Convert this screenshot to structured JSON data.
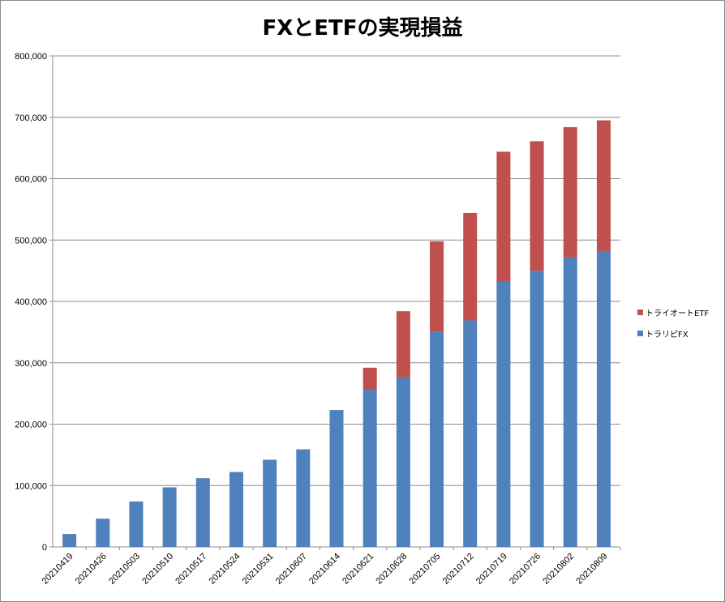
{
  "chart_data": {
    "type": "bar",
    "stacked": true,
    "title": "FXとETFの実現損益",
    "categories": [
      "20210419",
      "20210426",
      "20210503",
      "20210510",
      "20210517",
      "20210524",
      "20210531",
      "20210607",
      "20210614",
      "20210621",
      "20210628",
      "20210705",
      "20210712",
      "20210719",
      "20210726",
      "20210802",
      "20210809"
    ],
    "series": [
      {
        "name": "トラリピFX",
        "color": "#4f81bd",
        "values": [
          21000,
          46000,
          74000,
          97000,
          112000,
          122000,
          142000,
          159000,
          223000,
          256000,
          276000,
          351000,
          369000,
          433000,
          450000,
          472000,
          482000
        ]
      },
      {
        "name": "トライオートETF",
        "color": "#c0504d",
        "values": [
          0,
          0,
          0,
          0,
          0,
          0,
          0,
          0,
          0,
          36000,
          108000,
          147000,
          175000,
          211000,
          211000,
          212000,
          213000
        ]
      }
    ],
    "ylim": [
      0,
      800000
    ],
    "yticks": [
      "0",
      "100,000",
      "200,000",
      "300,000",
      "400,000",
      "500,000",
      "600,000",
      "700,000",
      "800,000"
    ],
    "grid": true,
    "legend_position": "right"
  }
}
